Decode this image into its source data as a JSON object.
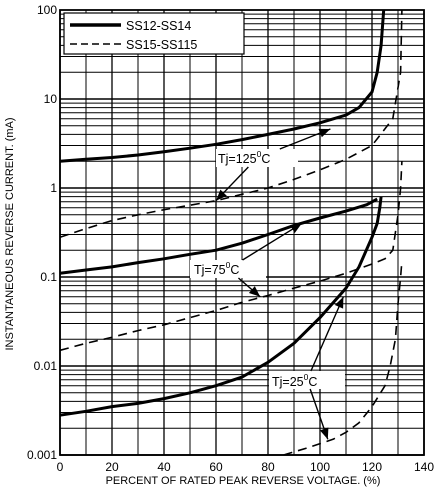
{
  "chart_data": {
    "type": "line",
    "title": "",
    "xlabel": "PERCENT OF RATED PEAK REVERSE VOLTAGE. (%)",
    "ylabel": "INSTANTANEOUS REVERSE CURRENT. (mA)",
    "xlim": [
      0,
      140
    ],
    "ylim": [
      0.001,
      100
    ],
    "yscale": "log",
    "grid": true,
    "legend_position": "top-left",
    "x_ticks": [
      "0",
      "20",
      "40",
      "60",
      "80",
      "100",
      "120",
      "140"
    ],
    "y_ticks": [
      "0.001",
      "0.01",
      "0.1",
      "1",
      "10",
      "100"
    ],
    "legend": [
      {
        "label": "SS12-SS14",
        "style": "solid"
      },
      {
        "label": "SS15-SS115",
        "style": "dashed"
      }
    ],
    "series": [
      {
        "name": "SS12-SS14",
        "temp": "125",
        "style": "solid",
        "points": [
          [
            0,
            2.0
          ],
          [
            10,
            2.1
          ],
          [
            20,
            2.2
          ],
          [
            30,
            2.35
          ],
          [
            40,
            2.55
          ],
          [
            50,
            2.8
          ],
          [
            60,
            3.1
          ],
          [
            70,
            3.5
          ],
          [
            80,
            4.0
          ],
          [
            90,
            4.6
          ],
          [
            100,
            5.4
          ],
          [
            110,
            6.6
          ],
          [
            115,
            8.0
          ],
          [
            120,
            12
          ],
          [
            122,
            20
          ],
          [
            123.5,
            40
          ],
          [
            124.5,
            100
          ]
        ]
      },
      {
        "name": "SS15-SS115",
        "temp": "125",
        "style": "dashed",
        "points": [
          [
            0,
            0.28
          ],
          [
            10,
            0.35
          ],
          [
            20,
            0.43
          ],
          [
            30,
            0.5
          ],
          [
            40,
            0.57
          ],
          [
            50,
            0.64
          ],
          [
            60,
            0.72
          ],
          [
            70,
            0.85
          ],
          [
            80,
            1.0
          ],
          [
            90,
            1.25
          ],
          [
            100,
            1.6
          ],
          [
            110,
            2.1
          ],
          [
            120,
            3.0
          ],
          [
            128,
            6
          ],
          [
            131,
            20
          ],
          [
            131.5,
            100
          ]
        ]
      },
      {
        "name": "SS12-SS14",
        "temp": "75",
        "style": "solid",
        "points": [
          [
            0,
            0.11
          ],
          [
            10,
            0.12
          ],
          [
            20,
            0.13
          ],
          [
            30,
            0.145
          ],
          [
            40,
            0.16
          ],
          [
            50,
            0.18
          ],
          [
            60,
            0.2
          ],
          [
            70,
            0.24
          ],
          [
            80,
            0.3
          ],
          [
            90,
            0.38
          ],
          [
            100,
            0.46
          ],
          [
            110,
            0.55
          ],
          [
            118,
            0.65
          ],
          [
            122,
            0.75
          ]
        ]
      },
      {
        "name": "SS15-SS115",
        "temp": "75",
        "style": "dashed",
        "points": [
          [
            0,
            0.015
          ],
          [
            10,
            0.018
          ],
          [
            20,
            0.021
          ],
          [
            30,
            0.025
          ],
          [
            40,
            0.029
          ],
          [
            50,
            0.035
          ],
          [
            60,
            0.042
          ],
          [
            70,
            0.052
          ],
          [
            80,
            0.062
          ],
          [
            90,
            0.075
          ],
          [
            100,
            0.09
          ],
          [
            110,
            0.11
          ],
          [
            120,
            0.14
          ],
          [
            125,
            0.16
          ],
          [
            128,
            0.2
          ],
          [
            130,
            0.5
          ],
          [
            131,
            1.0
          ],
          [
            131.5,
            2.0
          ]
        ]
      },
      {
        "name": "SS12-SS14",
        "temp": "25",
        "style": "solid",
        "points": [
          [
            0,
            0.0028
          ],
          [
            10,
            0.0031
          ],
          [
            20,
            0.0035
          ],
          [
            30,
            0.0038
          ],
          [
            40,
            0.0043
          ],
          [
            50,
            0.005
          ],
          [
            60,
            0.006
          ],
          [
            70,
            0.0075
          ],
          [
            80,
            0.011
          ],
          [
            90,
            0.018
          ],
          [
            100,
            0.035
          ],
          [
            110,
            0.075
          ],
          [
            115,
            0.13
          ],
          [
            120,
            0.28
          ],
          [
            122,
            0.4
          ],
          [
            123,
            0.6
          ],
          [
            123.5,
            0.8
          ]
        ]
      },
      {
        "name": "SS15-SS115",
        "temp": "25",
        "style": "dashed",
        "points": [
          [
            86,
            0.001
          ],
          [
            95,
            0.0012
          ],
          [
            105,
            0.0015
          ],
          [
            110,
            0.0018
          ],
          [
            115,
            0.0023
          ],
          [
            120,
            0.0035
          ],
          [
            125,
            0.006
          ],
          [
            127,
            0.01
          ],
          [
            129,
            0.02
          ],
          [
            130,
            0.05
          ],
          [
            131,
            0.1
          ],
          [
            131.5,
            0.15
          ]
        ]
      }
    ],
    "annotations": [
      {
        "text": "Tj=125",
        "sup": "0",
        "unit": "C",
        "arrows": [
          [
            104,
            4.6
          ],
          [
            60,
            0.72
          ]
        ]
      },
      {
        "text": "Tj=75",
        "sup": "0",
        "unit": "C",
        "arrows": [
          [
            93,
            0.4
          ],
          [
            77,
            0.06
          ]
        ]
      },
      {
        "text": "Tj=25",
        "sup": "0",
        "unit": "C",
        "arrows": [
          [
            109,
            0.06
          ],
          [
            103,
            0.0015
          ]
        ]
      }
    ]
  }
}
